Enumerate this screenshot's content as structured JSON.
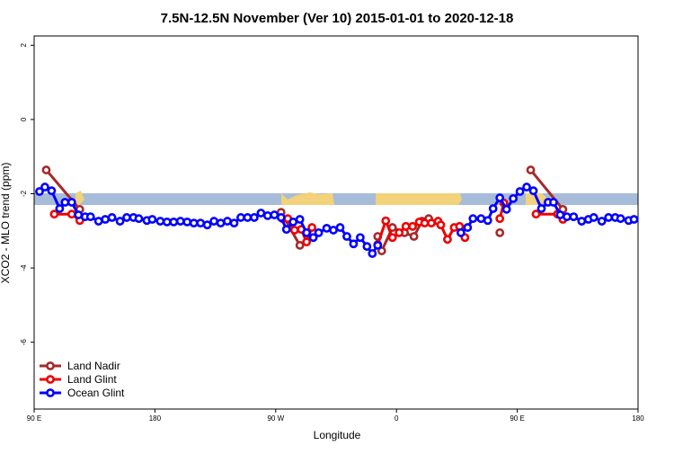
{
  "chart_data": {
    "type": "line",
    "title": "7.5N-12.5N November (Ver 10)   2015-01-01 to 2020-12-18",
    "x_label": "Longitude",
    "y_label": "XCO2 - MLO trend (ppm)",
    "xlim": [
      90,
      540
    ],
    "ylim": [
      -7.8,
      2.25
    ],
    "xticks": [
      {
        "value": 90,
        "label": "90 E"
      },
      180,
      {
        "value": 270,
        "label": "90 W"
      },
      {
        "value": 360,
        "label": "0"
      },
      {
        "value": 450,
        "label": "90 E"
      },
      {
        "value": 540,
        "label": "180"
      }
    ],
    "yticks": [
      -6,
      -4,
      -2,
      0,
      2
    ],
    "legend": "bottom-left",
    "series": [
      {
        "name": "Land Nadir",
        "color": "#a52a2a",
        "x": [
          99,
          124,
          200,
          274,
          288,
          320,
          346,
          349,
          357,
          366,
          373,
          379,
          384,
          400,
          437,
          445,
          460,
          484
        ],
        "values": [
          -1.36,
          -2.42,
          null,
          -2.5,
          -3.39,
          null,
          -3.15,
          -3.54,
          -2.91,
          -3.05,
          -3.15,
          -2.74,
          -2.67,
          null,
          -3.05,
          null,
          -1.36,
          -2.42
        ]
      },
      {
        "name": "Land Glint",
        "color": "#ee0000",
        "x": [
          105,
          118,
          124,
          200,
          275,
          279,
          284,
          289,
          293,
          297,
          320,
          346,
          352,
          357,
          362,
          367,
          372,
          377,
          381,
          386,
          391,
          393,
          398,
          403,
          407,
          411,
          425,
          437,
          440,
          450,
          464,
          480,
          484
        ],
        "values": [
          -2.55,
          -2.55,
          -2.72,
          null,
          -2.67,
          -2.67,
          -2.98,
          -2.96,
          -3.3,
          -2.91,
          null,
          -3.37,
          -2.73,
          -3.18,
          -3.05,
          -2.88,
          -2.88,
          -2.76,
          -2.79,
          -2.79,
          -2.74,
          -2.84,
          -3.23,
          -2.91,
          -2.88,
          -3.18,
          null,
          -2.67,
          -2.25,
          null,
          -2.55,
          -2.55,
          -2.69
        ]
      },
      {
        "name": "Ocean Glint",
        "color": "#0000ff",
        "x": [
          94,
          98,
          103,
          109,
          113,
          118,
          123,
          128,
          132,
          138,
          143,
          148,
          154,
          159,
          164,
          168,
          174,
          178,
          184,
          189,
          194,
          199,
          204,
          209,
          214,
          219,
          224,
          229,
          234,
          239,
          244,
          249,
          254,
          259,
          264,
          269,
          274,
          278,
          283,
          288,
          293,
          298,
          302,
          308,
          313,
          318,
          323,
          328,
          333,
          338,
          342,
          346,
          380,
          408,
          413,
          417,
          423,
          428,
          432,
          437,
          442,
          447,
          452,
          457,
          462,
          468,
          473,
          477,
          482,
          487,
          492,
          498,
          503,
          507,
          513,
          518,
          523,
          527,
          533,
          537
        ],
        "values": [
          -1.94,
          -1.82,
          -1.92,
          -2.4,
          -2.23,
          -2.23,
          -2.57,
          -2.62,
          -2.62,
          -2.74,
          -2.69,
          -2.64,
          -2.74,
          -2.64,
          -2.64,
          -2.67,
          -2.72,
          -2.69,
          -2.74,
          -2.76,
          -2.76,
          -2.74,
          -2.76,
          -2.79,
          -2.79,
          -2.84,
          -2.74,
          -2.79,
          -2.74,
          -2.79,
          -2.64,
          -2.64,
          -2.64,
          -2.52,
          -2.59,
          -2.57,
          -2.64,
          -2.96,
          -2.76,
          -2.69,
          -3.05,
          -3.18,
          -3.05,
          -2.93,
          -2.98,
          -2.91,
          -3.15,
          -3.35,
          -3.18,
          -3.42,
          -3.61,
          -3.39,
          null,
          -3.05,
          -2.91,
          -2.67,
          -2.67,
          -2.72,
          -2.4,
          -2.11,
          -2.42,
          -2.13,
          -1.94,
          -1.82,
          -1.92,
          -2.4,
          -2.23,
          -2.23,
          -2.57,
          -2.62,
          -2.62,
          -2.74,
          -2.69,
          -2.64,
          -2.74,
          -2.64,
          -2.64,
          -2.67,
          -2.72,
          -2.69
        ]
      }
    ]
  }
}
